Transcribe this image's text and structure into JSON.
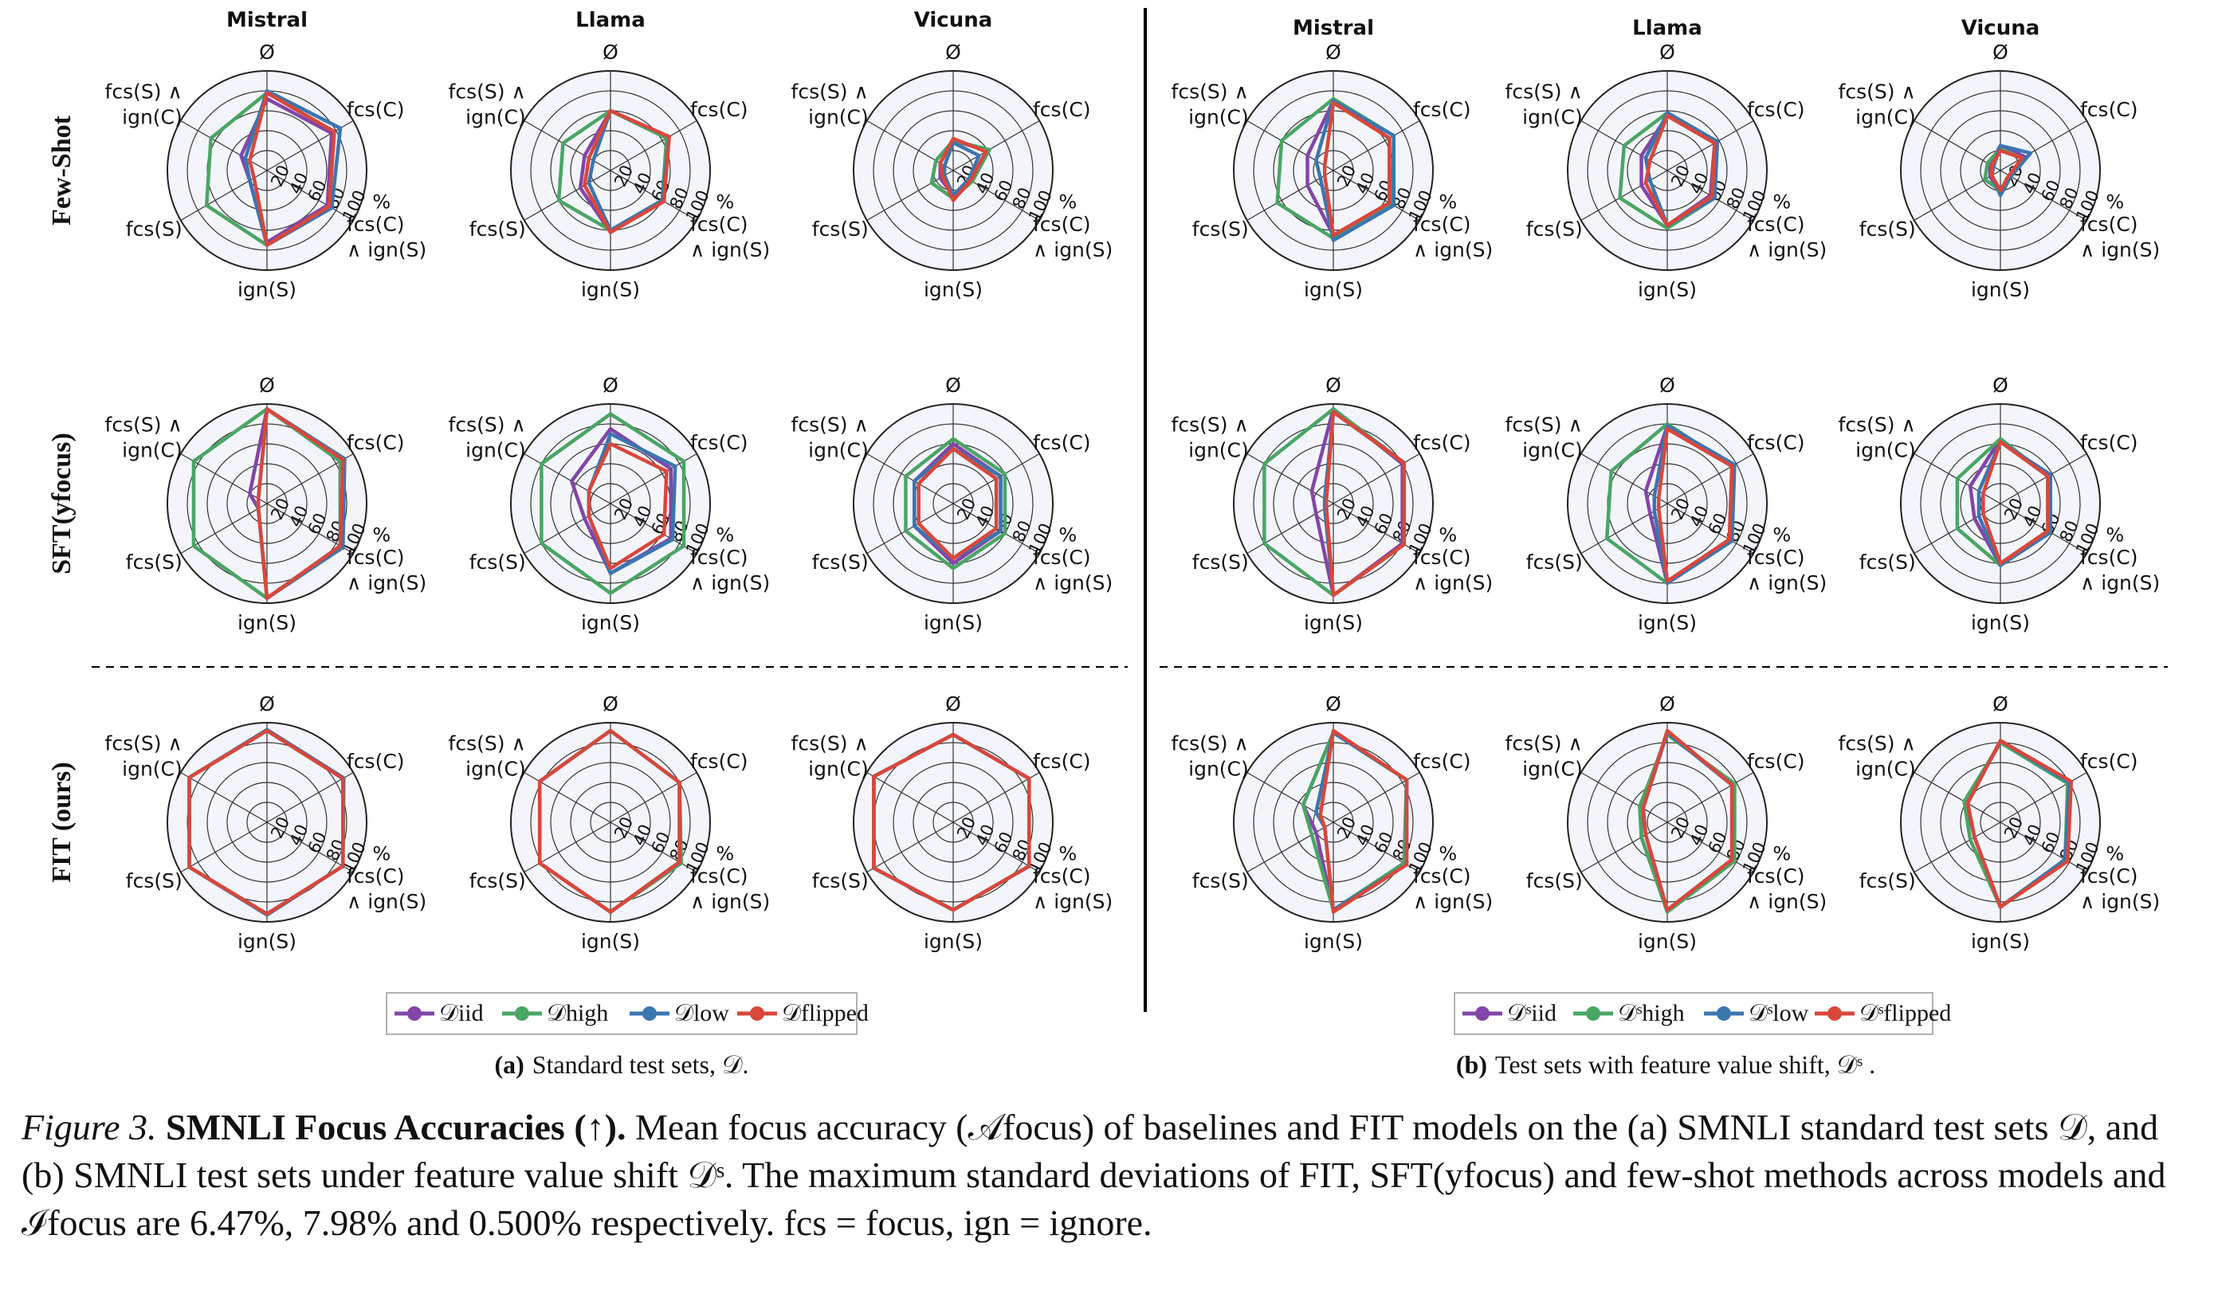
{
  "chart_data": {
    "type": "radar",
    "rlim": [
      0,
      100
    ],
    "rticks": [
      20,
      40,
      60,
      80,
      100
    ],
    "r_unit": "%",
    "axes": [
      [
        "Ø"
      ],
      [
        "fcs(C)"
      ],
      [
        "fcs(C)",
        "∧ ign(S)"
      ],
      [
        "ign(S)"
      ],
      [
        "fcs(S)"
      ],
      [
        "fcs(S) ∧",
        "ign(C)"
      ]
    ],
    "row_labels": [
      "Few-Shot",
      "SFT(yfocus)",
      "FIT (ours)"
    ],
    "panels": [
      {
        "columns": [
          "Mistral",
          "Llama",
          "Vicuna"
        ],
        "legend": [
          {
            "name": "𝒟iid",
            "color": "#8245a8"
          },
          {
            "name": "𝒟high",
            "color": "#4aa564"
          },
          {
            "name": "𝒟low",
            "color": "#3a76b0"
          },
          {
            "name": "𝒟flipped",
            "color": "#d9473b"
          }
        ],
        "caption_label": "(a)",
        "caption_text": "Standard test sets, 𝒟.",
        "rows": [
          [
            [
              [
                72,
                75,
                70,
                72,
                20,
                30
              ],
              [
                78,
                78,
                72,
                75,
                70,
                65
              ],
              [
                80,
                85,
                75,
                75,
                20,
                25
              ],
              [
                78,
                78,
                72,
                75,
                15,
                20
              ]
            ],
            [
              [
                60,
                68,
                60,
                62,
                35,
                30
              ],
              [
                60,
                65,
                60,
                60,
                60,
                55
              ],
              [
                60,
                68,
                60,
                60,
                25,
                20
              ],
              [
                60,
                68,
                62,
                62,
                30,
                25
              ]
            ],
            [
              [
                30,
                40,
                20,
                25,
                15,
                15
              ],
              [
                30,
                42,
                22,
                28,
                25,
                20
              ],
              [
                28,
                30,
                18,
                25,
                10,
                10
              ],
              [
                32,
                38,
                20,
                30,
                12,
                15
              ]
            ]
          ],
          [
            [
              [
                95,
                85,
                85,
                95,
                10,
                20
              ],
              [
                95,
                85,
                85,
                95,
                85,
                85
              ],
              [
                95,
                90,
                88,
                95,
                10,
                10
              ],
              [
                95,
                88,
                85,
                95,
                10,
                10
              ]
            ],
            [
              [
                75,
                70,
                70,
                70,
                30,
                45
              ],
              [
                90,
                85,
                85,
                90,
                80,
                80
              ],
              [
                70,
                75,
                72,
                70,
                25,
                25
              ],
              [
                60,
                65,
                62,
                65,
                25,
                25
              ]
            ],
            [
              [
                60,
                55,
                55,
                60,
                45,
                45
              ],
              [
                65,
                60,
                60,
                65,
                55,
                55
              ],
              [
                55,
                55,
                55,
                55,
                45,
                45
              ],
              [
                55,
                50,
                50,
                55,
                40,
                40
              ]
            ]
          ],
          [
            [
              [
                92,
                88,
                88,
                92,
                90,
                90
              ],
              [
                92,
                88,
                88,
                92,
                90,
                90
              ],
              [
                93,
                89,
                88,
                93,
                90,
                90
              ],
              [
                92,
                88,
                88,
                92,
                90,
                90
              ]
            ],
            [
              [
                92,
                80,
                80,
                90,
                82,
                82
              ],
              [
                92,
                80,
                82,
                90,
                82,
                82
              ],
              [
                92,
                80,
                80,
                90,
                82,
                82
              ],
              [
                92,
                80,
                80,
                90,
                82,
                82
              ]
            ],
            [
              [
                88,
                88,
                88,
                88,
                92,
                92
              ],
              [
                88,
                88,
                88,
                88,
                92,
                92
              ],
              [
                88,
                88,
                88,
                88,
                92,
                92
              ],
              [
                88,
                88,
                88,
                88,
                92,
                92
              ]
            ]
          ]
        ]
      },
      {
        "columns": [
          "Mistral",
          "Llama",
          "Vicuna"
        ],
        "legend": [
          {
            "name": "𝒟ˢiid",
            "color": "#8245a8"
          },
          {
            "name": "𝒟ˢhigh",
            "color": "#4aa564"
          },
          {
            "name": "𝒟ˢlow",
            "color": "#3a76b0"
          },
          {
            "name": "𝒟ˢflipped",
            "color": "#d9473b"
          }
        ],
        "caption_label": "(b)",
        "caption_text": "Test sets with feature value shift, 𝒟ˢ .",
        "rows": [
          [
            [
              [
                70,
                65,
                65,
                65,
                30,
                30
              ],
              [
                72,
                70,
                68,
                68,
                65,
                60
              ],
              [
                70,
                70,
                70,
                70,
                15,
                20
              ],
              [
                68,
                65,
                65,
                65,
                10,
                10
              ]
            ],
            [
              [
                55,
                55,
                50,
                55,
                30,
                30
              ],
              [
                58,
                58,
                55,
                58,
                55,
                50
              ],
              [
                58,
                58,
                55,
                55,
                20,
                25
              ],
              [
                55,
                55,
                52,
                55,
                25,
                20
              ]
            ],
            [
              [
                25,
                28,
                10,
                22,
                12,
                12
              ],
              [
                22,
                25,
                12,
                20,
                18,
                15
              ],
              [
                25,
                35,
                12,
                25,
                10,
                8
              ],
              [
                20,
                25,
                10,
                20,
                10,
                10
              ]
            ]
          ],
          [
            [
              [
                95,
                80,
                80,
                92,
                20,
                25
              ],
              [
                95,
                82,
                82,
                92,
                80,
                80
              ],
              [
                92,
                82,
                82,
                92,
                10,
                10
              ],
              [
                92,
                82,
                82,
                92,
                8,
                8
              ]
            ],
            [
              [
                78,
                75,
                72,
                80,
                20,
                25
              ],
              [
                80,
                75,
                72,
                80,
                70,
                65
              ],
              [
                78,
                78,
                75,
                80,
                15,
                15
              ],
              [
                75,
                75,
                72,
                78,
                10,
                10
              ]
            ],
            [
              [
                65,
                55,
                55,
                62,
                30,
                35
              ],
              [
                65,
                55,
                55,
                62,
                50,
                50
              ],
              [
                62,
                58,
                58,
                62,
                25,
                25
              ],
              [
                62,
                55,
                55,
                60,
                20,
                20
              ]
            ]
          ],
          [
            [
              [
                90,
                85,
                82,
                88,
                20,
                35
              ],
              [
                90,
                85,
                82,
                88,
                25,
                35
              ],
              [
                90,
                85,
                85,
                88,
                10,
                20
              ],
              [
                92,
                85,
                85,
                90,
                10,
                15
              ]
            ],
            [
              [
                90,
                75,
                75,
                88,
                30,
                30
              ],
              [
                88,
                78,
                78,
                90,
                30,
                32
              ],
              [
                90,
                75,
                75,
                88,
                25,
                28
              ],
              [
                92,
                75,
                75,
                88,
                25,
                28
              ]
            ],
            [
              [
                80,
                80,
                75,
                85,
                30,
                40
              ],
              [
                80,
                78,
                75,
                85,
                35,
                42
              ],
              [
                82,
                80,
                75,
                85,
                30,
                38
              ],
              [
                82,
                82,
                78,
                85,
                30,
                38
              ]
            ]
          ]
        ]
      }
    ]
  },
  "caption": {
    "label": "Figure 3.",
    "heading": "SMNLI Focus Accuracies (↑).",
    "body": "Mean focus accuracy (𝒜focus) of baselines and FIT models on the (a) SMNLI standard test sets 𝒟, and (b) SMNLI test sets under feature value shift 𝒟ˢ. The maximum standard deviations of FIT, SFT(yfocus) and few-shot methods across models and ℐfocus are 6.47%, 7.98% and 0.500% respectively. fcs = focus, ign = ignore."
  }
}
